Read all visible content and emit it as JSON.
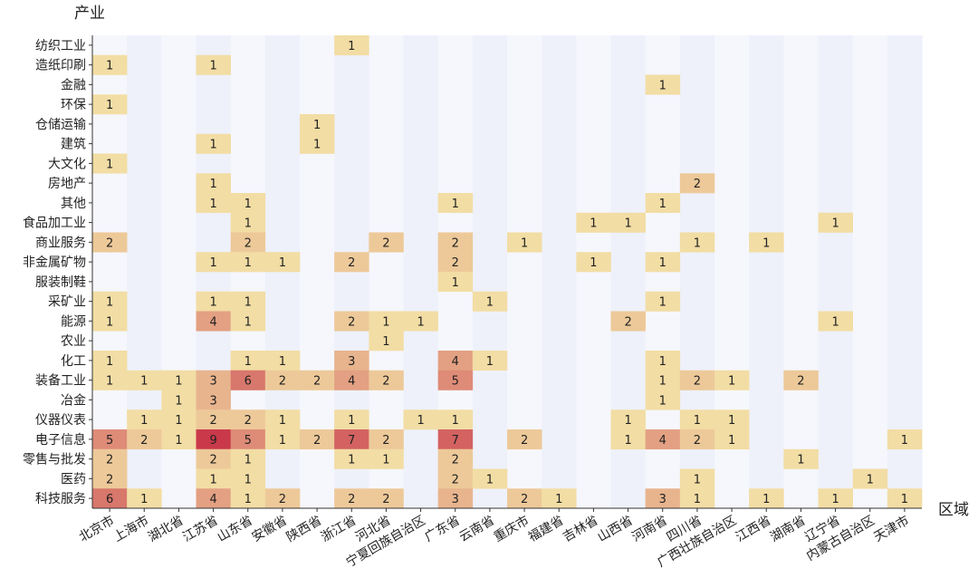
{
  "chart_data": {
    "type": "heatmap",
    "title": "",
    "ylabel": "产业",
    "xlabel": "区域",
    "colors": {
      "low": "#F2DDA4",
      "high": "#C9394A",
      "band_a": "#F6F7FD",
      "band_b": "#EEF1FA",
      "text": "#222222"
    },
    "y_categories": [
      "纺织工业",
      "造纸印刷",
      "金融",
      "环保",
      "仓储运输",
      "建筑",
      "大文化",
      "房地产",
      "其他",
      "食品加工业",
      "商业服务",
      "非金属矿物",
      "服装制鞋",
      "采矿业",
      "能源",
      "农业",
      "化工",
      "装备工业",
      "冶金",
      "仪器仪表",
      "电子信息",
      "零售与批发",
      "医药",
      "科技服务"
    ],
    "x_categories": [
      "北京市",
      "上海市",
      "湖北省",
      "江苏省",
      "山东省",
      "安徽省",
      "陕西省",
      "浙江省",
      "河北省",
      "宁夏回族自治区",
      "广东省",
      "云南省",
      "重庆市",
      "福建省",
      "吉林省",
      "山西省",
      "河南省",
      "四川省",
      "广西壮族自治区",
      "江西省",
      "湖南省",
      "辽宁省",
      "内蒙古自治区",
      "天津市"
    ],
    "values": [
      [
        0,
        0,
        0,
        0,
        0,
        0,
        0,
        1,
        0,
        0,
        0,
        0,
        0,
        0,
        0,
        0,
        0,
        0,
        0,
        0,
        0,
        0,
        0,
        0
      ],
      [
        1,
        0,
        0,
        1,
        0,
        0,
        0,
        0,
        0,
        0,
        0,
        0,
        0,
        0,
        0,
        0,
        0,
        0,
        0,
        0,
        0,
        0,
        0,
        0
      ],
      [
        0,
        0,
        0,
        0,
        0,
        0,
        0,
        0,
        0,
        0,
        0,
        0,
        0,
        0,
        0,
        0,
        1,
        0,
        0,
        0,
        0,
        0,
        0,
        0
      ],
      [
        1,
        0,
        0,
        0,
        0,
        0,
        0,
        0,
        0,
        0,
        0,
        0,
        0,
        0,
        0,
        0,
        0,
        0,
        0,
        0,
        0,
        0,
        0,
        0
      ],
      [
        0,
        0,
        0,
        0,
        0,
        0,
        1,
        0,
        0,
        0,
        0,
        0,
        0,
        0,
        0,
        0,
        0,
        0,
        0,
        0,
        0,
        0,
        0,
        0
      ],
      [
        0,
        0,
        0,
        1,
        0,
        0,
        1,
        0,
        0,
        0,
        0,
        0,
        0,
        0,
        0,
        0,
        0,
        0,
        0,
        0,
        0,
        0,
        0,
        0
      ],
      [
        1,
        0,
        0,
        0,
        0,
        0,
        0,
        0,
        0,
        0,
        0,
        0,
        0,
        0,
        0,
        0,
        0,
        0,
        0,
        0,
        0,
        0,
        0,
        0
      ],
      [
        0,
        0,
        0,
        1,
        0,
        0,
        0,
        0,
        0,
        0,
        0,
        0,
        0,
        0,
        0,
        0,
        0,
        2,
        0,
        0,
        0,
        0,
        0,
        0
      ],
      [
        0,
        0,
        0,
        1,
        1,
        0,
        0,
        0,
        0,
        0,
        1,
        0,
        0,
        0,
        0,
        0,
        1,
        0,
        0,
        0,
        0,
        0,
        0,
        0
      ],
      [
        0,
        0,
        0,
        0,
        1,
        0,
        0,
        0,
        0,
        0,
        0,
        0,
        0,
        0,
        1,
        1,
        0,
        0,
        0,
        0,
        0,
        1,
        0,
        0
      ],
      [
        2,
        0,
        0,
        0,
        2,
        0,
        0,
        0,
        2,
        0,
        2,
        0,
        1,
        0,
        0,
        0,
        0,
        1,
        0,
        1,
        0,
        0,
        0,
        0
      ],
      [
        0,
        0,
        0,
        1,
        1,
        1,
        0,
        2,
        0,
        0,
        2,
        0,
        0,
        0,
        1,
        0,
        1,
        0,
        0,
        0,
        0,
        0,
        0,
        0
      ],
      [
        0,
        0,
        0,
        0,
        0,
        0,
        0,
        0,
        0,
        0,
        1,
        0,
        0,
        0,
        0,
        0,
        0,
        0,
        0,
        0,
        0,
        0,
        0,
        0
      ],
      [
        1,
        0,
        0,
        1,
        1,
        0,
        0,
        0,
        0,
        0,
        0,
        1,
        0,
        0,
        0,
        0,
        1,
        0,
        0,
        0,
        0,
        0,
        0,
        0
      ],
      [
        1,
        0,
        0,
        4,
        1,
        0,
        0,
        2,
        1,
        1,
        0,
        0,
        0,
        0,
        0,
        2,
        0,
        0,
        0,
        0,
        0,
        1,
        0,
        0
      ],
      [
        0,
        0,
        0,
        0,
        0,
        0,
        0,
        0,
        1,
        0,
        0,
        0,
        0,
        0,
        0,
        0,
        0,
        0,
        0,
        0,
        0,
        0,
        0,
        0
      ],
      [
        1,
        0,
        0,
        0,
        1,
        1,
        0,
        3,
        0,
        0,
        4,
        1,
        0,
        0,
        0,
        0,
        1,
        0,
        0,
        0,
        0,
        0,
        0,
        0
      ],
      [
        1,
        1,
        1,
        3,
        6,
        2,
        2,
        4,
        2,
        0,
        5,
        0,
        0,
        0,
        0,
        0,
        1,
        2,
        1,
        0,
        2,
        0,
        0,
        0
      ],
      [
        0,
        0,
        1,
        3,
        0,
        0,
        0,
        0,
        0,
        0,
        0,
        0,
        0,
        0,
        0,
        0,
        1,
        0,
        0,
        0,
        0,
        0,
        0,
        0
      ],
      [
        0,
        1,
        1,
        2,
        2,
        1,
        0,
        1,
        0,
        1,
        1,
        0,
        0,
        0,
        0,
        1,
        0,
        1,
        1,
        0,
        0,
        0,
        0,
        0
      ],
      [
        5,
        2,
        1,
        9,
        5,
        1,
        2,
        7,
        2,
        0,
        7,
        0,
        2,
        0,
        0,
        1,
        4,
        2,
        1,
        0,
        0,
        0,
        0,
        1
      ],
      [
        2,
        0,
        0,
        2,
        1,
        0,
        0,
        1,
        1,
        0,
        2,
        0,
        0,
        0,
        0,
        0,
        0,
        0,
        0,
        0,
        1,
        0,
        0,
        0
      ],
      [
        2,
        0,
        0,
        1,
        1,
        0,
        0,
        0,
        0,
        0,
        2,
        1,
        0,
        0,
        0,
        0,
        0,
        1,
        0,
        0,
        0,
        0,
        1,
        0
      ],
      [
        6,
        1,
        0,
        4,
        1,
        2,
        0,
        2,
        2,
        0,
        3,
        0,
        2,
        1,
        0,
        0,
        3,
        1,
        0,
        1,
        0,
        1,
        0,
        1
      ]
    ],
    "value_range": [
      1,
      9
    ]
  }
}
